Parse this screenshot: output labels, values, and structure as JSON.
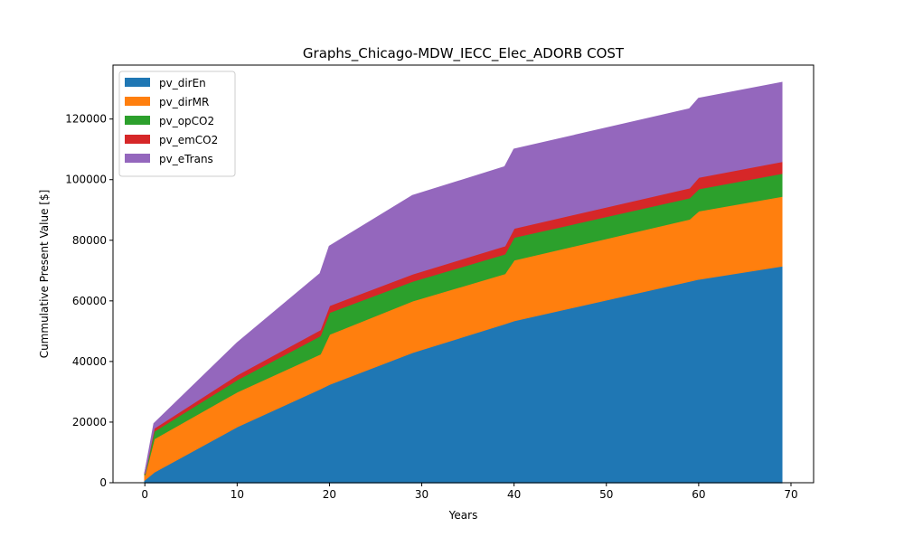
{
  "chart_data": {
    "type": "area",
    "stacked": true,
    "title": "Graphs_Chicago-MDW_IECC_Elec_ADORB COST",
    "xlabel": "Years",
    "ylabel": "Cummulative Present Value [$]",
    "xlim": [
      -3.45,
      72.45
    ],
    "ylim": [
      0,
      137800
    ],
    "xticks": [
      0,
      10,
      20,
      30,
      40,
      50,
      60,
      70
    ],
    "xtick_labels": [
      "0",
      "10",
      "20",
      "30",
      "40",
      "50",
      "60",
      "70"
    ],
    "yticks": [
      0,
      20000,
      40000,
      60000,
      80000,
      100000,
      120000
    ],
    "ytick_labels": [
      "0",
      "20000",
      "40000",
      "60000",
      "80000",
      "100000",
      "120000"
    ],
    "grid": false,
    "legend_position": "top-left",
    "x": [
      0,
      1,
      10,
      19,
      20,
      29,
      39,
      40,
      59,
      60,
      69
    ],
    "series": [
      {
        "name": "pv_dirEn",
        "color": "#1f77b4",
        "values": [
          1000,
          3500,
          18500,
          31000,
          32500,
          43000,
          52500,
          53500,
          66500,
          67200,
          71500
        ]
      },
      {
        "name": "pv_dirMR",
        "color": "#ff7f0e",
        "values": [
          1500,
          11000,
          11500,
          11500,
          16500,
          17000,
          16500,
          20000,
          20500,
          22500,
          23000
        ]
      },
      {
        "name": "pv_opCO2",
        "color": "#2ca02c",
        "values": [
          400,
          2500,
          4000,
          6000,
          7200,
          6500,
          6500,
          7500,
          7000,
          7300,
          7600
        ]
      },
      {
        "name": "pv_emCO2",
        "color": "#d62728",
        "values": [
          150,
          1000,
          1600,
          2000,
          2300,
          2400,
          2700,
          3000,
          3300,
          3800,
          3900
        ]
      },
      {
        "name": "pv_eTrans",
        "color": "#9467bd",
        "values": [
          0,
          1500,
          10500,
          18500,
          19500,
          25800,
          26000,
          26000,
          26000,
          26000,
          26000
        ]
      }
    ]
  }
}
